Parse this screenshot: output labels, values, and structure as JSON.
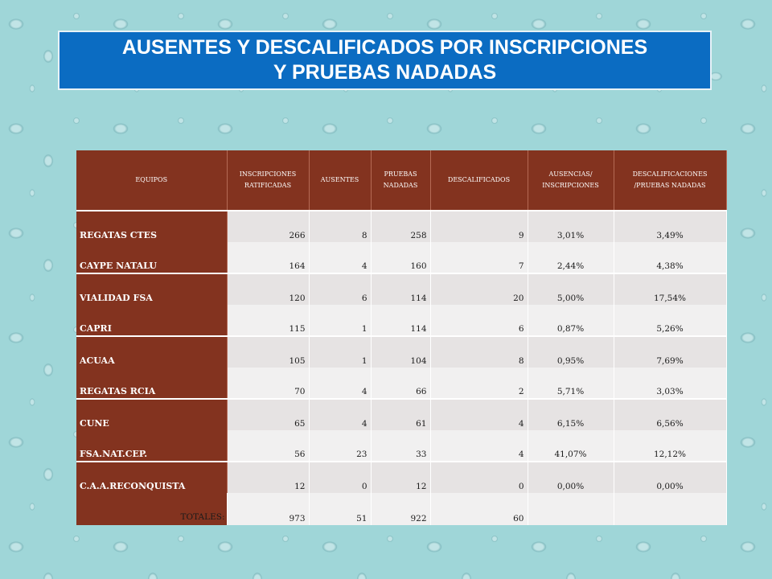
{
  "title": {
    "line1": "AUSENTES Y DESCALIFICADOS POR INSCRIPCIONES",
    "line2": "Y PRUEBAS NADADAS"
  },
  "table": {
    "headers": {
      "equipos": "EQUIPOS",
      "inscripciones_a": "INSCRIPCIONES",
      "inscripciones_b": "RATIFICADAS",
      "ausentes": "AUSENTES",
      "pruebas_a": "PRUEBAS",
      "pruebas_b": "NADADAS",
      "descalificados": "DESCALIFICADOS",
      "ausencias_a": "AUSENCIAS/",
      "ausencias_b": "INSCRIPCIONES",
      "descalif_a": "DESCALIFICACIONES",
      "descalif_b": "/PRUEBAS NADADAS"
    },
    "rows": [
      {
        "team": "REGATAS CTES",
        "inscripciones": "266",
        "ausentes": "8",
        "pruebas": "258",
        "descalificados": "9",
        "aus_pct": "3,01%",
        "desc_pct": "3,49%"
      },
      {
        "team": "CAYPE NATALU",
        "inscripciones": "164",
        "ausentes": "4",
        "pruebas": "160",
        "descalificados": "7",
        "aus_pct": "2,44%",
        "desc_pct": "4,38%"
      },
      {
        "team": "VIALIDAD FSA",
        "inscripciones": "120",
        "ausentes": "6",
        "pruebas": "114",
        "descalificados": "20",
        "aus_pct": "5,00%",
        "desc_pct": "17,54%"
      },
      {
        "team": "CAPRI",
        "inscripciones": "115",
        "ausentes": "1",
        "pruebas": "114",
        "descalificados": "6",
        "aus_pct": "0,87%",
        "desc_pct": "5,26%"
      },
      {
        "team": "ACUAA",
        "inscripciones": "105",
        "ausentes": "1",
        "pruebas": "104",
        "descalificados": "8",
        "aus_pct": "0,95%",
        "desc_pct": "7,69%"
      },
      {
        "team": "REGATAS RCIA",
        "inscripciones": "70",
        "ausentes": "4",
        "pruebas": "66",
        "descalificados": "2",
        "aus_pct": "5,71%",
        "desc_pct": "3,03%"
      },
      {
        "team": "CUNE",
        "inscripciones": "65",
        "ausentes": "4",
        "pruebas": "61",
        "descalificados": "4",
        "aus_pct": "6,15%",
        "desc_pct": "6,56%"
      },
      {
        "team": "FSA.NAT.CEP.",
        "inscripciones": "56",
        "ausentes": "23",
        "pruebas": "33",
        "descalificados": "4",
        "aus_pct": "41,07%",
        "desc_pct": "12,12%"
      },
      {
        "team": "C.A.A.RECONQUISTA",
        "inscripciones": "12",
        "ausentes": "0",
        "pruebas": "12",
        "descalificados": "0",
        "aus_pct": "0,00%",
        "desc_pct": "0,00%"
      }
    ],
    "totals": {
      "label": "TOTALES:",
      "inscripciones": "973",
      "ausentes": "51",
      "pruebas": "922",
      "descalificados": "60",
      "aus_pct": "",
      "desc_pct": ""
    }
  }
}
